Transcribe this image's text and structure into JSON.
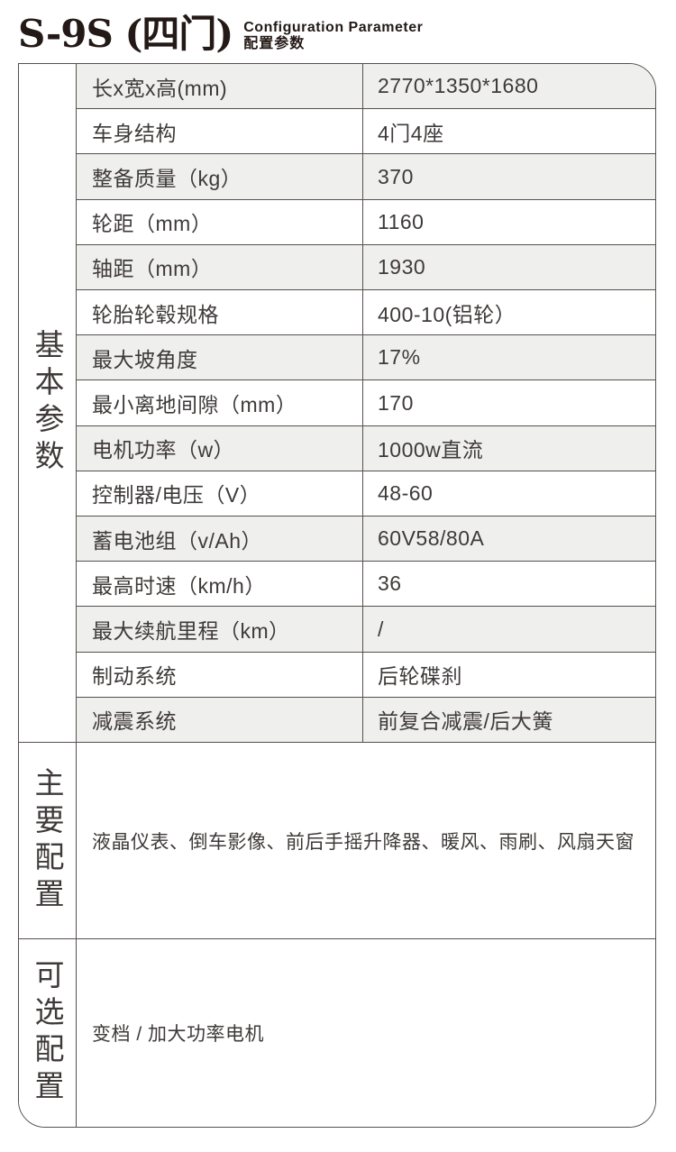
{
  "header": {
    "title": "S-9S (四门)",
    "subtitle_en": "Configuration Parameter",
    "subtitle_cn": "配置参数"
  },
  "table": {
    "sections": [
      {
        "header_vertical": "基本参数",
        "rows": [
          {
            "label": "长x宽x高(mm)",
            "value": "2770*1350*1680"
          },
          {
            "label": "车身结构",
            "value": "4门4座"
          },
          {
            "label": "整备质量（kg）",
            "value": "370"
          },
          {
            "label": "轮距（mm）",
            "value": "1160"
          },
          {
            "label": "轴距（mm）",
            "value": "1930"
          },
          {
            "label": "轮胎轮毂规格",
            "value": "400-10(铝轮）"
          },
          {
            "label": "最大坡角度",
            "value": "17%"
          },
          {
            "label": "最小离地间隙（mm）",
            "value": "170"
          },
          {
            "label": "电机功率（w）",
            "value": "1000w直流"
          },
          {
            "label": "控制器/电压（V）",
            "value": "48-60"
          },
          {
            "label": "蓄电池组（v/Ah）",
            "value": "60V58/80A"
          },
          {
            "label": "最高时速（km/h）",
            "value": "36"
          },
          {
            "label": "最大续航里程（km）",
            "value": "/"
          },
          {
            "label": "制动系统",
            "value": "后轮碟刹"
          },
          {
            "label": "减震系统",
            "value": "前复合减震/后大簧"
          }
        ]
      },
      {
        "header_vertical": "主要配置",
        "content": "液晶仪表、倒车影像、前后手摇升降器、暖风、雨刷、风扇天窗"
      },
      {
        "header_vertical": "可选配置",
        "content": "变档 / 加大功率电机"
      }
    ]
  },
  "colors": {
    "row_shade": "#efefee",
    "border": "#55504e",
    "text": "#3e3a39",
    "title": "#231916"
  }
}
